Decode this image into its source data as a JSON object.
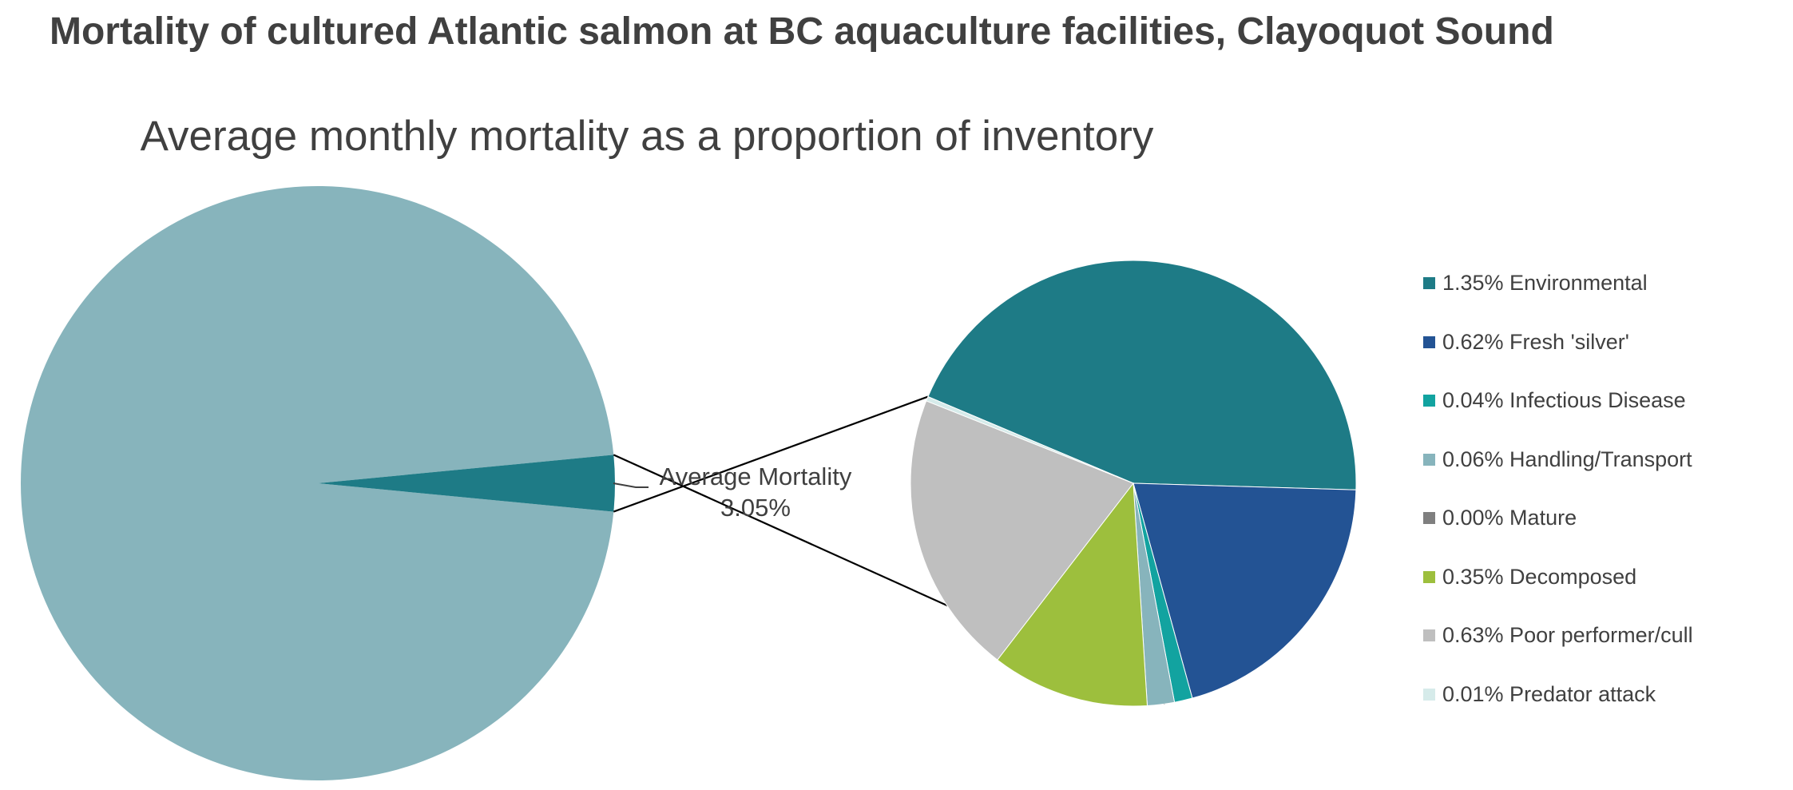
{
  "header": {
    "title": "Mortality of cultured Atlantic salmon at BC aquaculture facilities, Clayoquot Sound"
  },
  "chart_data": {
    "type": "pie",
    "subtype": "pie-of-pie",
    "title": "Average monthly mortality as a proportion of inventory",
    "main_pie": {
      "slices": [
        {
          "value": 96.95,
          "color": "#87b4bc"
        },
        {
          "value": 3.05,
          "color": "#1e7b86"
        }
      ],
      "callout": {
        "line1": "Average Mortality",
        "line2": "3.05%"
      }
    },
    "secondary_pie": {
      "slices": [
        {
          "legend": "1.35% Environmental",
          "value": 1.35,
          "color": "#1e7b86"
        },
        {
          "legend": "0.62% Fresh 'silver'",
          "value": 0.62,
          "color": "#235394"
        },
        {
          "legend": "0.04% Infectious Disease",
          "value": 0.04,
          "color": "#12a3a0"
        },
        {
          "legend": "0.06% Handling/Transport",
          "value": 0.06,
          "color": "#87b4bc"
        },
        {
          "legend": "0.00% Mature",
          "value": 0.0,
          "color": "#7f7f7f"
        },
        {
          "legend": "0.35% Decomposed",
          "value": 0.35,
          "color": "#9dbf3d"
        },
        {
          "legend": "0.63% Poor performer/cull",
          "value": 0.63,
          "color": "#bfbfbf"
        },
        {
          "legend": "0.01% Predator attack",
          "value": 0.01,
          "color": "#d6ebea"
        }
      ]
    },
    "legend_position": "right"
  }
}
